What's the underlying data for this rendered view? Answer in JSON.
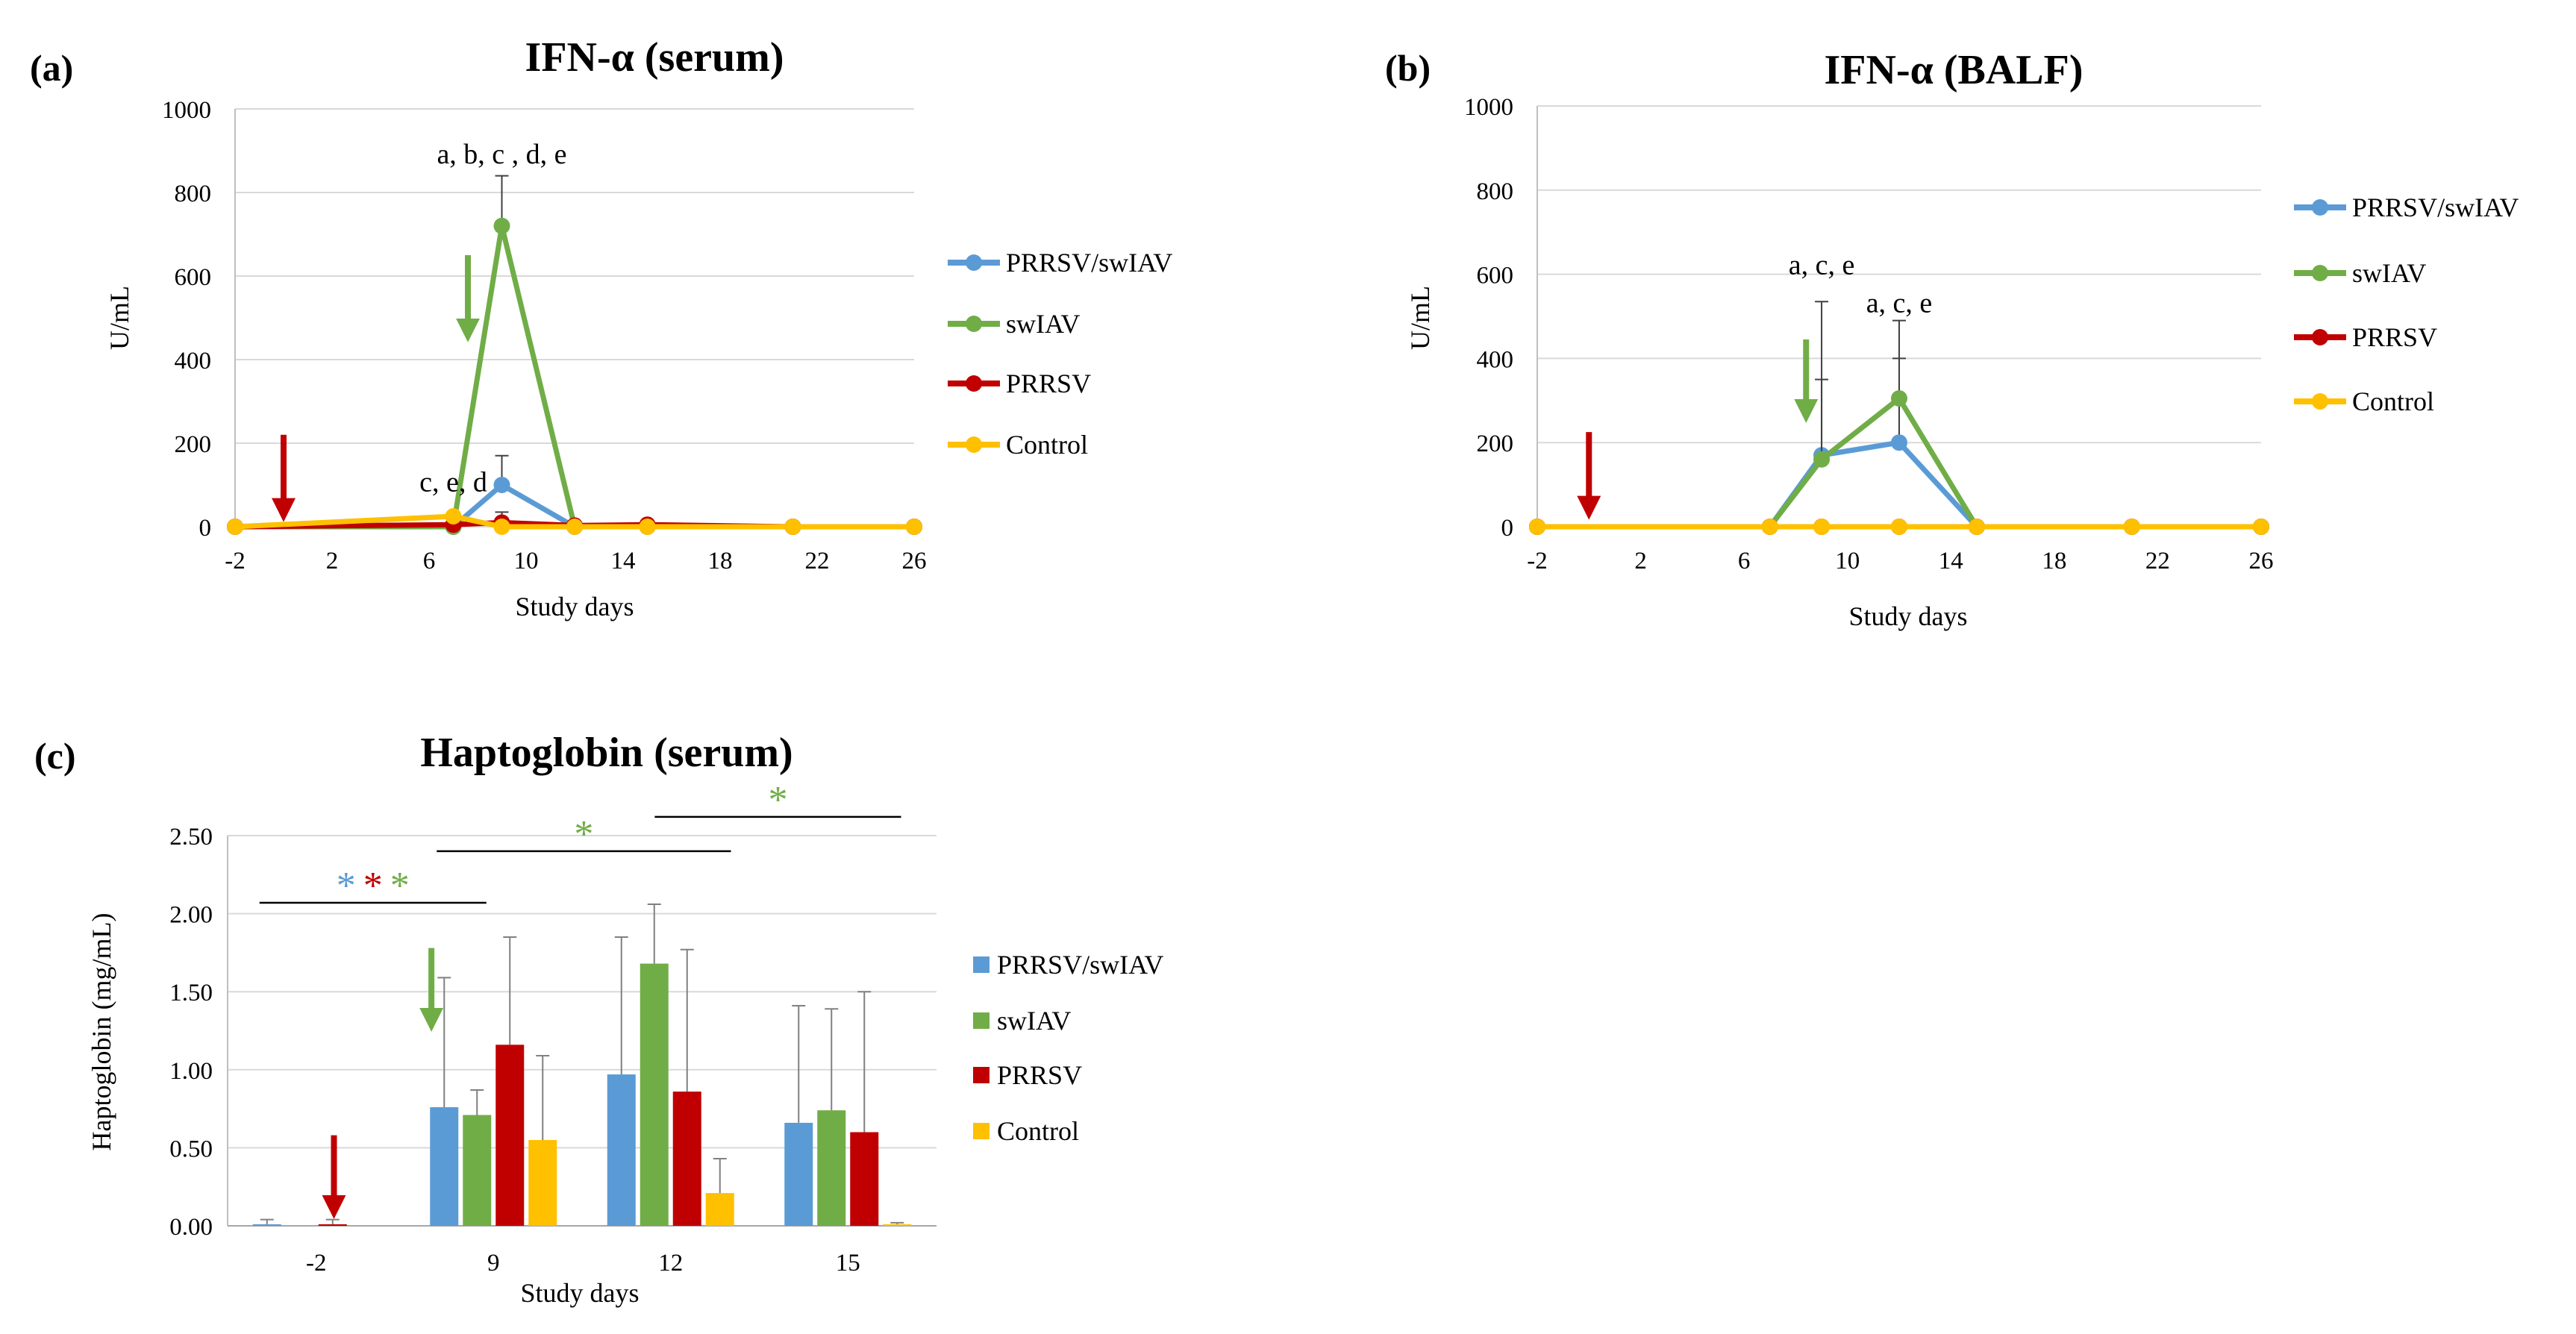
{
  "colors": {
    "PRRSV/swIAV": "#5b9bd5",
    "swIAV": "#70ad47",
    "PRRSV": "#c00000",
    "Control": "#ffc000",
    "arrow_green": "#70ad47",
    "arrow_red": "#c00000"
  },
  "chart_data": [
    {
      "id": "a",
      "panel_label": "(a)",
      "type": "line",
      "title": "IFN-α (serum)",
      "xlabel": "Study days",
      "ylabel": "U/mL",
      "xlim": [
        -2,
        26
      ],
      "ylim": [
        0,
        1000
      ],
      "xticks": [
        "-2",
        "2",
        "6",
        "10",
        "14",
        "18",
        "22",
        "26"
      ],
      "yticks": [
        "0",
        "200",
        "400",
        "600",
        "800",
        "1000"
      ],
      "series": [
        {
          "name": "PRRSV/swIAV",
          "x": [
            -2,
            7,
            9,
            12,
            15,
            21,
            26
          ],
          "y": [
            0,
            0,
            100,
            0,
            0,
            0,
            0
          ],
          "err": [
            0,
            0,
            70,
            0,
            0,
            0,
            0
          ]
        },
        {
          "name": "swIAV",
          "x": [
            -2,
            7,
            9,
            12,
            15,
            21,
            26
          ],
          "y": [
            0,
            0,
            720,
            0,
            0,
            0,
            0
          ],
          "err": [
            0,
            0,
            120,
            0,
            0,
            0,
            0
          ]
        },
        {
          "name": "PRRSV",
          "x": [
            -2,
            7,
            9,
            12,
            15,
            21,
            26
          ],
          "y": [
            0,
            5,
            10,
            3,
            5,
            0,
            0
          ],
          "err": [
            0,
            0,
            25,
            0,
            0,
            0,
            0
          ]
        },
        {
          "name": "Control",
          "x": [
            -2,
            7,
            9,
            12,
            15,
            21,
            26
          ],
          "y": [
            0,
            25,
            0,
            0,
            0,
            0,
            0
          ],
          "err": [
            0,
            0,
            0,
            0,
            0,
            0,
            0
          ]
        }
      ],
      "annotations": [
        {
          "text": "a, b, c , d, e",
          "x": 9,
          "y": 870
        },
        {
          "text": "c, e, d",
          "x": 7,
          "y": 85
        }
      ],
      "arrows": [
        {
          "color": "PRRSV",
          "x": 0,
          "y_top": 220,
          "y_bottom": 40
        },
        {
          "color": "swIAV",
          "x": 7.6,
          "y_top": 650,
          "y_bottom": 470
        }
      ],
      "legend_position": "right"
    },
    {
      "id": "b",
      "panel_label": "(b)",
      "type": "line",
      "title": "IFN-α (BALF)",
      "xlabel": "Study days",
      "ylabel": "U/mL",
      "xlim": [
        -2,
        26
      ],
      "ylim": [
        0,
        1000
      ],
      "xticks": [
        "-2",
        "2",
        "6",
        "10",
        "14",
        "18",
        "22",
        "26"
      ],
      "yticks": [
        "0",
        "200",
        "400",
        "600",
        "800",
        "1000"
      ],
      "series": [
        {
          "name": "PRRSV/swIAV",
          "x": [
            -2,
            7,
            9,
            12,
            15,
            21,
            26
          ],
          "y": [
            0,
            0,
            170,
            200,
            0,
            0,
            0
          ],
          "err": [
            0,
            0,
            365,
            200,
            0,
            0,
            0
          ]
        },
        {
          "name": "swIAV",
          "x": [
            -2,
            7,
            9,
            12,
            15,
            21,
            26
          ],
          "y": [
            0,
            0,
            160,
            305,
            0,
            0,
            0
          ],
          "err": [
            0,
            0,
            190,
            185,
            0,
            0,
            0
          ]
        },
        {
          "name": "PRRSV",
          "x": [
            -2,
            7,
            9,
            12,
            15,
            21,
            26
          ],
          "y": [
            0,
            0,
            0,
            0,
            0,
            0,
            0
          ],
          "err": [
            0,
            0,
            0,
            0,
            0,
            0,
            0
          ]
        },
        {
          "name": "Control",
          "x": [
            -2,
            7,
            9,
            12,
            15,
            21,
            26
          ],
          "y": [
            0,
            0,
            0,
            0,
            0,
            0,
            0
          ],
          "err": [
            0,
            0,
            0,
            0,
            0,
            0,
            0
          ]
        }
      ],
      "annotations": [
        {
          "text": "a, c, e",
          "x": 9,
          "y": 600
        },
        {
          "text": "a, c, e",
          "x": 12,
          "y": 510
        }
      ],
      "arrows": [
        {
          "color": "PRRSV",
          "x": 0,
          "y_top": 225,
          "y_bottom": 45
        },
        {
          "color": "swIAV",
          "x": 8.4,
          "y_top": 445,
          "y_bottom": 275
        }
      ],
      "legend_position": "right"
    },
    {
      "id": "c",
      "panel_label": "(c)",
      "type": "bar",
      "title": "Haptoglobin (serum)",
      "xlabel": "Study days",
      "ylabel": "Haptoglobin (mg/mL)",
      "categories": [
        "-2",
        "9",
        "12",
        "15"
      ],
      "ylim": [
        0,
        2.5
      ],
      "yticks": [
        "0.00",
        "0.50",
        "1.00",
        "1.50",
        "2.00",
        "2.50"
      ],
      "series": [
        {
          "name": "PRRSV/swIAV",
          "values": [
            0.01,
            0.76,
            0.97,
            0.66
          ],
          "err": [
            0.03,
            0.83,
            0.88,
            0.75
          ]
        },
        {
          "name": "swIAV",
          "values": [
            0.0,
            0.71,
            1.68,
            0.74
          ],
          "err": [
            0.0,
            0.16,
            0.38,
            0.65
          ]
        },
        {
          "name": "PRRSV",
          "values": [
            0.01,
            1.16,
            0.86,
            0.6
          ],
          "err": [
            0.03,
            0.69,
            0.91,
            0.9
          ]
        },
        {
          "name": "Control",
          "values": [
            0.0,
            0.55,
            0.21,
            0.01
          ],
          "err": [
            0.0,
            0.54,
            0.22,
            0.01
          ]
        }
      ],
      "significance": [
        {
          "from": -0.32,
          "to": 0.96,
          "y": 2.07,
          "stars": [
            "PRRSV/swIAV",
            "PRRSV",
            "swIAV"
          ]
        },
        {
          "from": 0.68,
          "to": 2.34,
          "y": 2.4,
          "stars": [
            "swIAV"
          ]
        },
        {
          "from": 1.91,
          "to": 3.3,
          "y": 2.62,
          "stars": [
            "swIAV"
          ]
        }
      ],
      "arrows": [
        {
          "color": "PRRSV",
          "x": 0.1,
          "y_top": 0.58,
          "y_bottom": 0.12
        },
        {
          "color": "swIAV",
          "x": 0.65,
          "y_top": 1.78,
          "y_bottom": 1.32
        }
      ],
      "star_symbol": "*",
      "legend_position": "right"
    }
  ]
}
